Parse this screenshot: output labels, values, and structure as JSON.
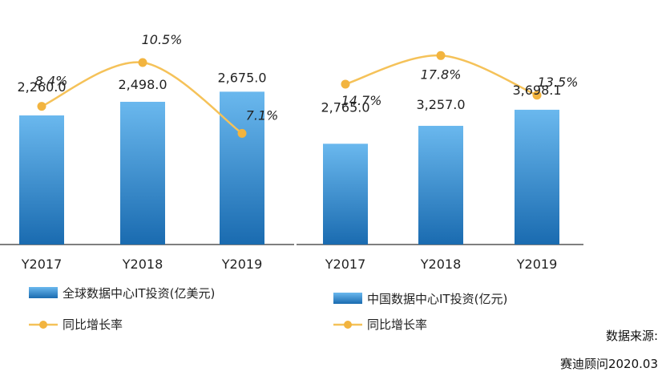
{
  "chart_data": [
    {
      "type": "bar",
      "categories": [
        "Y2017",
        "Y2018",
        "Y2019"
      ],
      "series": [
        {
          "name": "全球数据中心IT投资(亿美元)",
          "type": "bar",
          "values": [
            2260.0,
            2498.0,
            2675.0
          ],
          "labels": [
            "2,260.0",
            "2,498.0",
            "2,675.0"
          ]
        },
        {
          "name": "同比增长率",
          "type": "line",
          "values": [
            8.4,
            10.5,
            7.1
          ],
          "labels": [
            "8.4%",
            "10.5%",
            "7.1%"
          ],
          "unit": "%"
        }
      ],
      "legend_position": "bottom",
      "grid": false
    },
    {
      "type": "bar",
      "categories": [
        "Y2017",
        "Y2018",
        "Y2019"
      ],
      "series": [
        {
          "name": "中国数据中心IT投资(亿元)",
          "type": "bar",
          "values": [
            2765.0,
            3257.0,
            3698.1
          ],
          "labels": [
            "2,765.0",
            "3,257.0",
            "3,698.1"
          ]
        },
        {
          "name": "同比增长率",
          "type": "line",
          "values": [
            14.7,
            17.8,
            13.5
          ],
          "labels": [
            "14.7%",
            "17.8%",
            "13.5%"
          ],
          "unit": "%"
        }
      ],
      "legend_position": "bottom",
      "grid": false
    }
  ],
  "source": {
    "label": "数据来源:",
    "org": "赛迪顾问2020.03"
  },
  "colors": {
    "bar_light": "#6ab8ee",
    "bar_dark": "#1a6bb0",
    "line": "#f5c259",
    "marker": "#f2b43f",
    "axis": "#555555"
  }
}
